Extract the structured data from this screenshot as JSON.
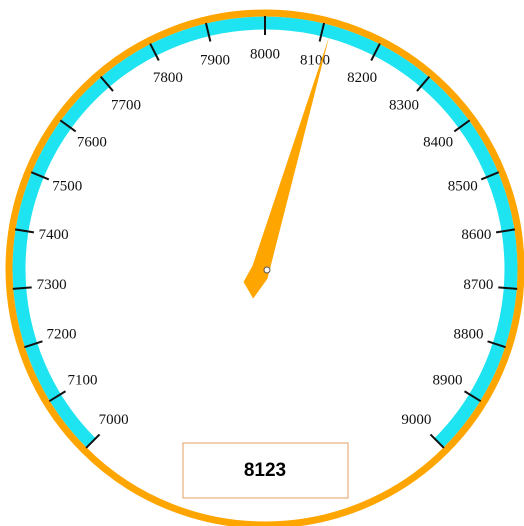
{
  "chart_data": {
    "type": "gauge",
    "value": 8123,
    "ylim": [
      7000,
      9000
    ],
    "yticks": [
      7000,
      7100,
      7200,
      7300,
      7400,
      7500,
      7600,
      7700,
      7800,
      7900,
      8000,
      8100,
      8200,
      8300,
      8400,
      8500,
      8600,
      8700,
      8800,
      8900,
      9000
    ],
    "color": "#ffa500",
    "band_color": "#1ee3f0"
  }
}
